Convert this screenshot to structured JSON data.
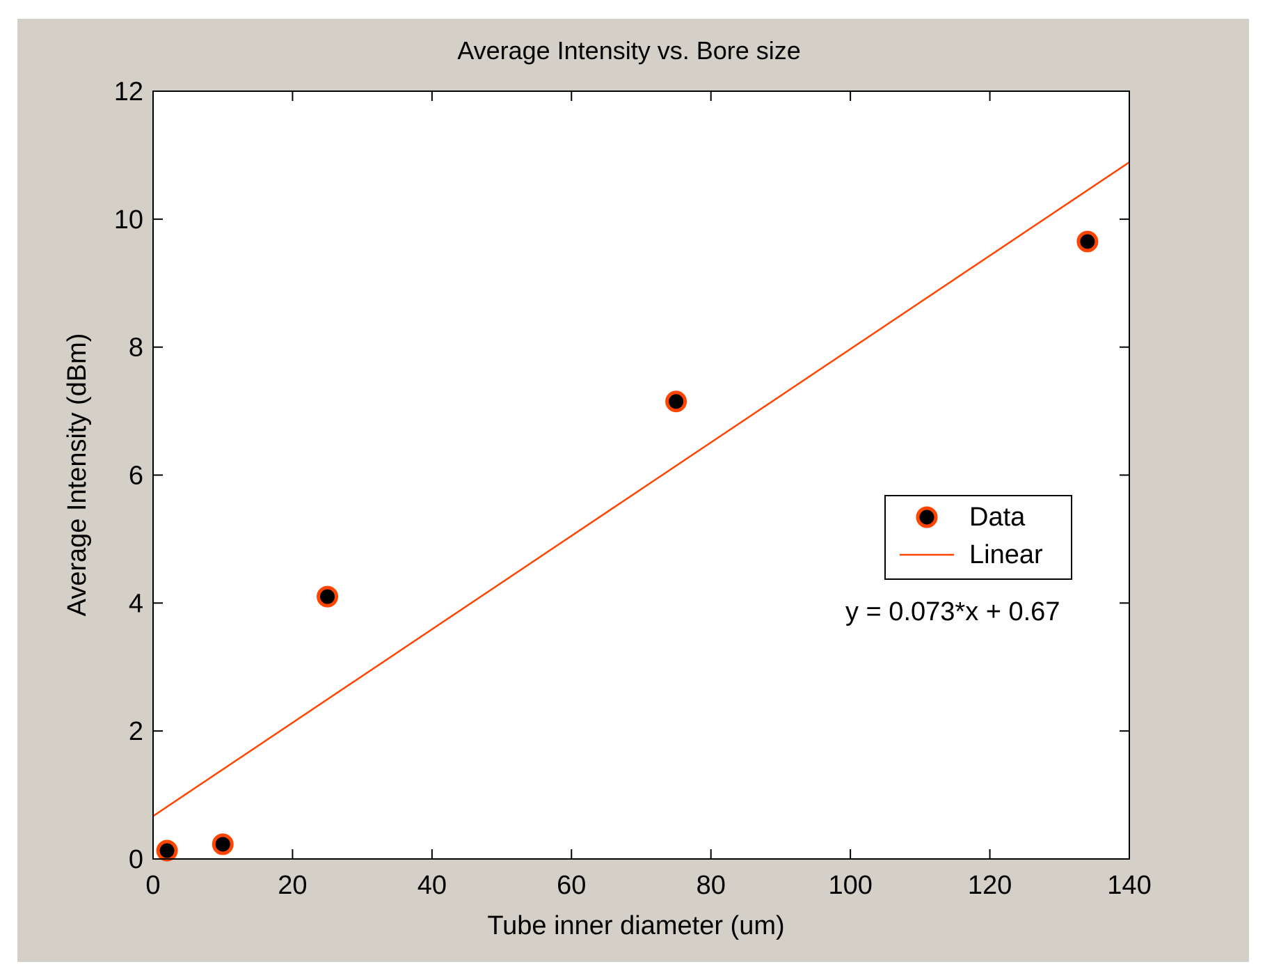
{
  "colors": {
    "figure_bg": "#d4d0c8",
    "plot_bg": "#ffffff",
    "axis": "#000000",
    "marker_fill": "#000000",
    "marker_edge": "#ff4500",
    "fit_line": "#ff4500"
  },
  "chart_data": {
    "type": "scatter",
    "title": "Average Intensity vs. Bore size",
    "xlabel": "Tube inner diameter (um)",
    "ylabel": "Average Intensity (dBm)",
    "xlim": [
      0,
      140
    ],
    "ylim": [
      0,
      12
    ],
    "xticks": [
      0,
      20,
      40,
      60,
      80,
      100,
      120,
      140
    ],
    "yticks": [
      0,
      2,
      4,
      6,
      8,
      10,
      12
    ],
    "xtick_labels": [
      "0",
      "20",
      "40",
      "60",
      "80",
      "100",
      "120",
      "140"
    ],
    "ytick_labels": [
      "0",
      "2",
      "4",
      "6",
      "8",
      "10",
      "12"
    ],
    "grid": false,
    "legend_position": "right",
    "series": [
      {
        "name": "Data",
        "kind": "scatter",
        "marker": "circle",
        "x": [
          2,
          10,
          25,
          75,
          134
        ],
        "y": [
          0.13,
          0.23,
          4.1,
          7.15,
          9.65
        ]
      },
      {
        "name": "Linear",
        "kind": "line",
        "x": [
          0,
          140
        ],
        "y": [
          0.67,
          10.89
        ]
      }
    ],
    "annotations": [
      {
        "text": "y = 0.073*x + 0.67"
      }
    ]
  }
}
